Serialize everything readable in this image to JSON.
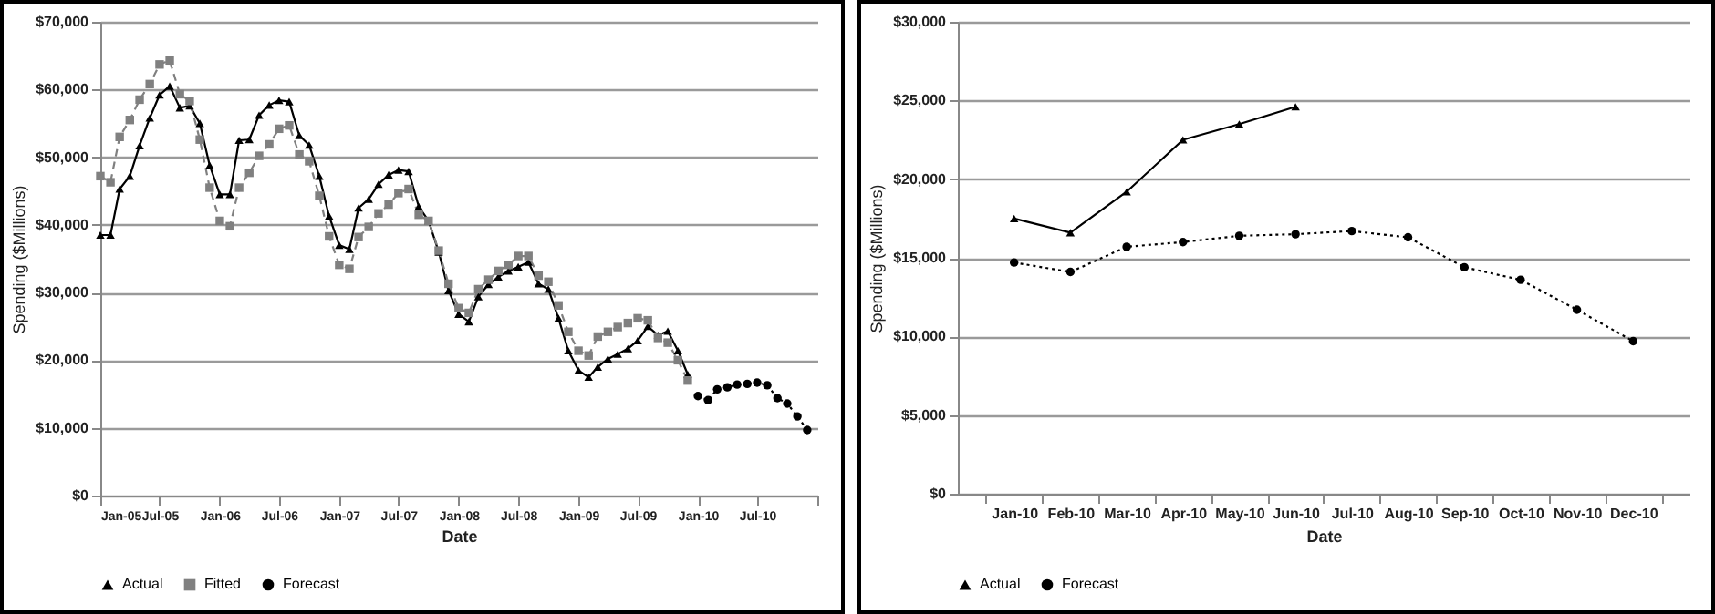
{
  "chart_data": [
    {
      "type": "line",
      "xlabel": "Date",
      "ylabel": "Spending ($Millions)",
      "grid": "y",
      "legend": "bottom",
      "x": [
        "2005-01",
        "2005-02",
        "2005-03",
        "2005-04",
        "2005-05",
        "2005-06",
        "2005-07",
        "2005-08",
        "2005-09",
        "2005-10",
        "2005-11",
        "2005-12",
        "2006-01",
        "2006-02",
        "2006-03",
        "2006-04",
        "2006-05",
        "2006-06",
        "2006-07",
        "2006-08",
        "2006-09",
        "2006-10",
        "2006-11",
        "2006-12",
        "2007-01",
        "2007-02",
        "2007-03",
        "2007-04",
        "2007-05",
        "2007-06",
        "2007-07",
        "2007-08",
        "2007-09",
        "2007-10",
        "2007-11",
        "2007-12",
        "2008-01",
        "2008-02",
        "2008-03",
        "2008-04",
        "2008-05",
        "2008-06",
        "2008-07",
        "2008-08",
        "2008-09",
        "2008-10",
        "2008-11",
        "2008-12",
        "2009-01",
        "2009-02",
        "2009-03",
        "2009-04",
        "2009-05",
        "2009-06",
        "2009-07",
        "2009-08",
        "2009-09",
        "2009-10",
        "2009-11",
        "2009-12",
        "2010-01",
        "2010-02",
        "2010-03",
        "2010-04",
        "2010-05",
        "2010-06",
        "2010-07",
        "2010-08",
        "2010-09",
        "2010-10",
        "2010-11",
        "2010-12"
      ],
      "xlim": [
        "2005-01",
        "2011-01"
      ],
      "xticks": [
        {
          "value": "2005-01",
          "label": "Jan-05"
        },
        {
          "value": "2005-07",
          "label": "Jul-05"
        },
        {
          "value": "2006-01",
          "label": "Jan-06"
        },
        {
          "value": "2006-07",
          "label": "Jul-06"
        },
        {
          "value": "2007-01",
          "label": "Jan-07"
        },
        {
          "value": "2007-07",
          "label": "Jul-07"
        },
        {
          "value": "2008-01",
          "label": "Jan-08"
        },
        {
          "value": "2008-07",
          "label": "Jul-08"
        },
        {
          "value": "2009-01",
          "label": "Jan-09"
        },
        {
          "value": "2009-07",
          "label": "Jul-09"
        },
        {
          "value": "2010-01",
          "label": "Jan-10"
        },
        {
          "value": "2010-07",
          "label": "Jul-10"
        },
        {
          "value": "2011-01",
          "label": null
        }
      ],
      "ylim": [
        0,
        70000
      ],
      "yticks": [
        {
          "value": 0,
          "label": "$0"
        },
        {
          "value": 10000,
          "label": "$10,000"
        },
        {
          "value": 20000,
          "label": "$20,000"
        },
        {
          "value": 30000,
          "label": "$30,000"
        },
        {
          "value": 40000,
          "label": "$40,000"
        },
        {
          "value": 50000,
          "label": "$50,000"
        },
        {
          "value": 60000,
          "label": "$60,000"
        },
        {
          "value": 70000,
          "label": "$70,000"
        }
      ],
      "series": [
        {
          "name": "Actual",
          "color": "#000000",
          "marker": "triangle",
          "line_style": "solid",
          "values": [
            38500,
            38500,
            45300,
            47200,
            51700,
            55800,
            59200,
            60500,
            57300,
            57600,
            55000,
            48800,
            44500,
            44500,
            52500,
            52600,
            56200,
            57700,
            58400,
            58200,
            53200,
            51800,
            47200,
            41300,
            37000,
            36400,
            42500,
            43800,
            46000,
            47400,
            48100,
            47900,
            42700,
            40600,
            36000,
            30300,
            26800,
            25700,
            29400,
            31200,
            32300,
            33200,
            33800,
            34500,
            31300,
            30500,
            26200,
            21400,
            18500,
            17500,
            19000,
            20200,
            20900,
            21700,
            22900,
            25000,
            23700,
            24300,
            21400,
            17900,
            null,
            null,
            null,
            null,
            null,
            null,
            null,
            null,
            null,
            null,
            null,
            null
          ]
        },
        {
          "name": "Fitted",
          "color": "#808080",
          "marker": "square",
          "line_style": "dashed",
          "values": [
            47200,
            46300,
            53000,
            55500,
            58500,
            60800,
            63700,
            64300,
            59300,
            58300,
            52600,
            45500,
            40600,
            39800,
            45500,
            47700,
            50200,
            51900,
            54200,
            54700,
            50400,
            49400,
            44300,
            38300,
            34100,
            33500,
            38200,
            39700,
            41700,
            43000,
            44700,
            45300,
            41500,
            40600,
            36200,
            31300,
            27700,
            27000,
            30500,
            31900,
            33200,
            34100,
            35400,
            35400,
            32500,
            31600,
            28100,
            24200,
            21400,
            20700,
            23500,
            24200,
            24900,
            25500,
            26200,
            25900,
            23300,
            22600,
            20000,
            17000,
            null,
            null,
            null,
            null,
            null,
            null,
            null,
            null,
            null,
            null,
            null,
            null
          ]
        },
        {
          "name": "Forecast",
          "color": "#000000",
          "marker": "circle",
          "line_style": "dotted",
          "values": [
            null,
            null,
            null,
            null,
            null,
            null,
            null,
            null,
            null,
            null,
            null,
            null,
            null,
            null,
            null,
            null,
            null,
            null,
            null,
            null,
            null,
            null,
            null,
            null,
            null,
            null,
            null,
            null,
            null,
            null,
            null,
            null,
            null,
            null,
            null,
            null,
            null,
            null,
            null,
            null,
            null,
            null,
            null,
            null,
            null,
            null,
            null,
            null,
            null,
            null,
            null,
            null,
            null,
            null,
            null,
            null,
            null,
            null,
            null,
            null,
            14700,
            14100,
            15700,
            16000,
            16400,
            16500,
            16700,
            16300,
            14400,
            13600,
            11700,
            9700
          ]
        }
      ]
    },
    {
      "type": "line",
      "xlabel": "Date",
      "ylabel": "Spending ($Millions)",
      "grid": "y",
      "legend": "bottom",
      "categories": [
        "Jan-10",
        "Feb-10",
        "Mar-10",
        "Apr-10",
        "May-10",
        "Jun-10",
        "Jul-10",
        "Aug-10",
        "Sep-10",
        "Oct-10",
        "Nov-10",
        "Dec-10"
      ],
      "ylim": [
        0,
        30000
      ],
      "yticks": [
        {
          "value": 0,
          "label": "$0"
        },
        {
          "value": 5000,
          "label": "$5,000"
        },
        {
          "value": 10000,
          "label": "$10,000"
        },
        {
          "value": 15000,
          "label": "$15,000"
        },
        {
          "value": 20000,
          "label": "$20,000"
        },
        {
          "value": 25000,
          "label": "$25,000"
        },
        {
          "value": 30000,
          "label": "$30,000"
        }
      ],
      "series": [
        {
          "name": "Actual",
          "color": "#000000",
          "marker": "triangle",
          "line_style": "solid",
          "values": [
            17500,
            16600,
            19200,
            22500,
            23500,
            24600,
            null,
            null,
            null,
            null,
            null,
            null
          ]
        },
        {
          "name": "Forecast",
          "color": "#000000",
          "marker": "circle",
          "line_style": "dotted",
          "values": [
            14700,
            14100,
            15700,
            16000,
            16400,
            16500,
            16700,
            16300,
            14400,
            13600,
            11700,
            9700
          ]
        }
      ]
    }
  ]
}
